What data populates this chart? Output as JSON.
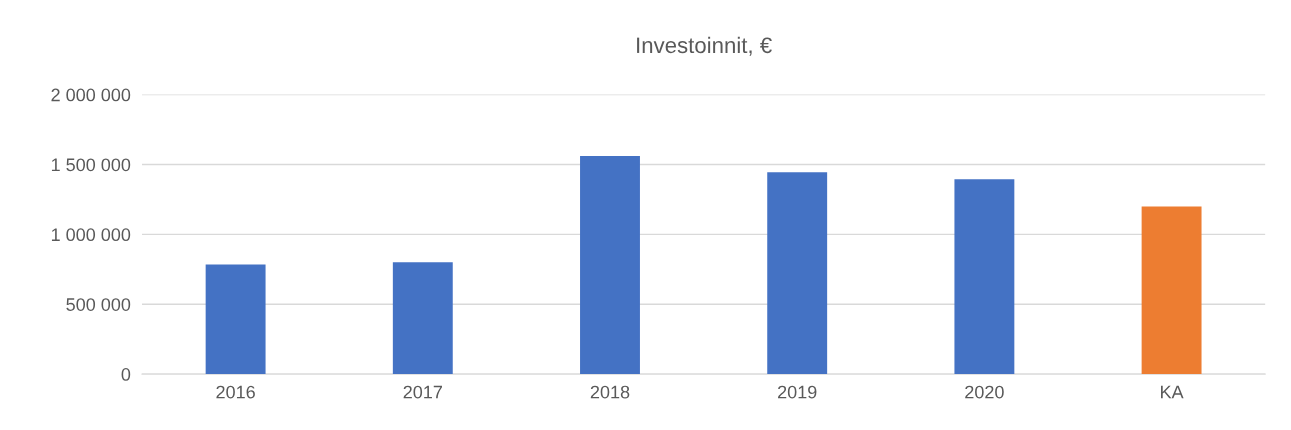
{
  "chart_data": {
    "type": "bar",
    "title": "Investoinnit, €",
    "categories": [
      "2016",
      "2017",
      "2018",
      "2019",
      "2020",
      "KA"
    ],
    "values": [
      785000,
      800000,
      1560000,
      1445000,
      1395000,
      1200000
    ],
    "colors": [
      "#4472c4",
      "#4472c4",
      "#4472c4",
      "#4472c4",
      "#4472c4",
      "#ed7d31"
    ],
    "ylim": [
      0,
      2000000
    ],
    "yticks": [
      {
        "value": 0,
        "label": "0"
      },
      {
        "value": 500000,
        "label": "500 000"
      },
      {
        "value": 1000000,
        "label": "1 000 000"
      },
      {
        "value": 1500000,
        "label": "1 500 000"
      },
      {
        "value": 2000000,
        "label": "2 000 000"
      }
    ],
    "grid": "y"
  }
}
